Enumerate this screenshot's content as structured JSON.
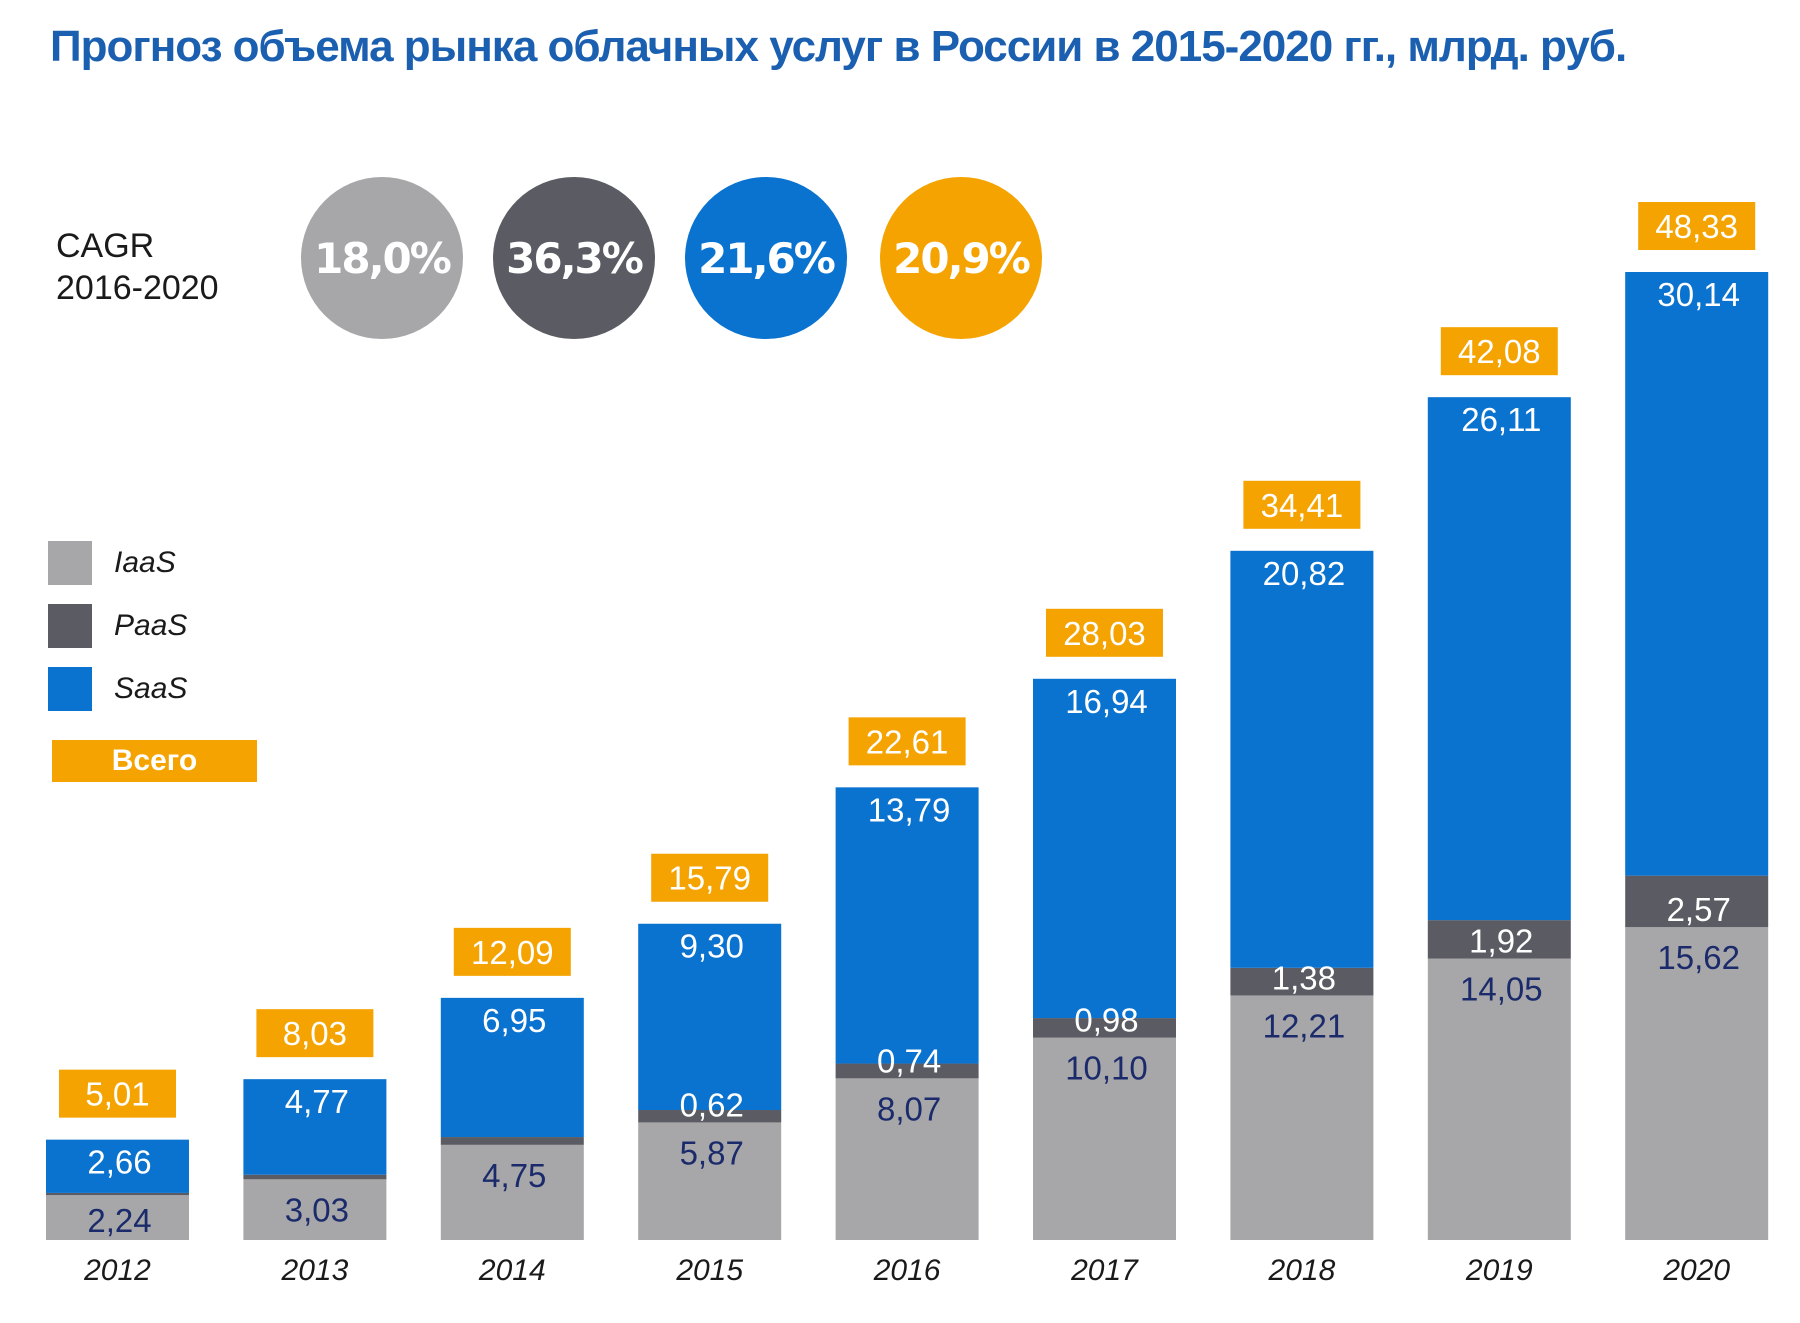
{
  "title": "Прогноз объема рынка облачных услуг в России в 2015-2020 гг., млрд. руб.",
  "cagr": {
    "label_line1": "CAGR",
    "label_line2": "2016-2020",
    "values": [
      {
        "series": "IaaS",
        "text": "18,0%",
        "color": "#a7a7a9"
      },
      {
        "series": "PaaS",
        "text": "36,3%",
        "color": "#5b5b63"
      },
      {
        "series": "SaaS",
        "text": "21,6%",
        "color": "#0a72cf"
      },
      {
        "series": "Всего",
        "text": "20,9%",
        "color": "#f5a300"
      }
    ]
  },
  "legend": {
    "iaas": "IaaS",
    "paas": "PaaS",
    "saas": "SaaS",
    "total": "Всего"
  },
  "colors": {
    "title": "#1b5fb0",
    "iaas": "#a7a7a9",
    "paas": "#5b5b63",
    "saas": "#0a72cf",
    "total": "#f5a300",
    "dark_label": "#1b2a6b",
    "light_label": "#ffffff"
  },
  "chart_data": {
    "type": "bar",
    "stacked": true,
    "title": "Прогноз объема рынка облачных услуг в России в 2015-2020 гг., млрд. руб.",
    "categories": [
      "2012",
      "2013",
      "2014",
      "2015",
      "2016",
      "2017",
      "2018",
      "2019",
      "2020"
    ],
    "series": [
      {
        "name": "IaaS",
        "values": [
          2.24,
          3.03,
          4.75,
          5.87,
          8.07,
          10.1,
          12.21,
          14.05,
          15.62
        ],
        "labels": [
          "2,24",
          "3,03",
          "4,75",
          "5,87",
          "8,07",
          "10,10",
          "12,21",
          "14,05",
          "15,62"
        ]
      },
      {
        "name": "PaaS",
        "values": [
          0.11,
          0.23,
          0.39,
          0.62,
          0.74,
          0.98,
          1.38,
          1.92,
          2.57
        ],
        "labels": [
          "",
          "",
          "",
          "0,62",
          "0,74",
          "0,98",
          "1,38",
          "1,92",
          "2,57"
        ]
      },
      {
        "name": "SaaS",
        "values": [
          2.66,
          4.77,
          6.95,
          9.3,
          13.79,
          16.94,
          20.82,
          26.11,
          30.14
        ],
        "labels": [
          "2,66",
          "4,77",
          "6,95",
          "9,30",
          "13,79",
          "16,94",
          "20,82",
          "26,11",
          "30,14"
        ]
      }
    ],
    "totals": [
      5.01,
      8.03,
      12.09,
      15.79,
      22.61,
      28.03,
      34.41,
      42.08,
      48.33
    ],
    "total_labels": [
      "5,01",
      "8,03",
      "12,09",
      "15,79",
      "22,61",
      "28,03",
      "34,41",
      "42,08",
      "48,33"
    ],
    "xlabel": "",
    "ylabel": "",
    "ylim": [
      0,
      48.33
    ],
    "grid": false,
    "legend": "left"
  }
}
